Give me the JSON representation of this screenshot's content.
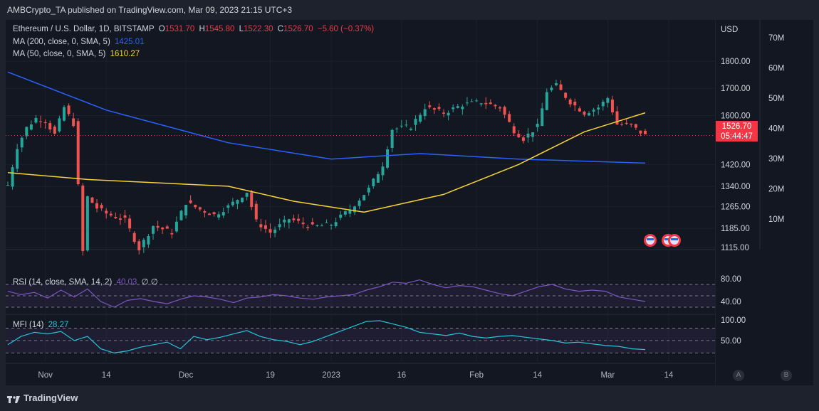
{
  "header": {
    "published": "AMBCrypto_TA published on TradingView.com, Mar 09, 2023 21:15 UTC+3"
  },
  "legend": {
    "symbol": "Ethereum / U.S. Dollar, 1D, BITSTAMP",
    "o_label": "O",
    "o_value": "1531.70",
    "h_label": "H",
    "h_value": "1545.80",
    "l_label": "L",
    "l_value": "1522.30",
    "c_label": "C",
    "c_value": "1526.70",
    "change": "−5.60 (−0.37%)",
    "ma200_label": "MA (200, close, 0, SMA, 5)",
    "ma200_value": "1425.01",
    "ma50_label": "MA (50, close, 0, SMA, 5)",
    "ma50_value": "1610.27",
    "rsi_label": "RSI (14, close, SMA, 14, 2)",
    "rsi_value": "40.03",
    "rsi_extra": "∅ ∅",
    "mfi_label": "MFI (14)",
    "mfi_value": "28.27"
  },
  "price_tag": {
    "price": "1526.70",
    "countdown": "05:44:47"
  },
  "axis": {
    "currency": "USD",
    "price_ticks": [
      "1800.00",
      "1700.00",
      "1600.00",
      "1420.00",
      "1340.00",
      "1265.00",
      "1185.00",
      "1115.00"
    ],
    "volume_ticks": [
      "70M",
      "60M",
      "50M",
      "40M",
      "30M",
      "20M",
      "10M"
    ],
    "rsi_ticks": [
      "80.00",
      "40.00"
    ],
    "mfi_ticks": [
      "100.00",
      "50.00"
    ],
    "time_ticks": [
      "Nov",
      "14",
      "Dec",
      "19",
      "2023",
      "16",
      "Feb",
      "14",
      "Mar",
      "14"
    ],
    "scale_buttons": [
      "A",
      "B"
    ]
  },
  "footer": {
    "brand": "TradingView"
  },
  "colors": {
    "up": "#26a69a",
    "down": "#ef5350",
    "ma200": "#2962ff",
    "ma50": "#f7d334",
    "rsi": "#7e57c2",
    "mfi": "#26c6da",
    "background": "#131722"
  },
  "chart_data": {
    "type": "candlestick",
    "title": "Ethereum / U.S. Dollar, 1D, BITSTAMP",
    "ylabel": "USD",
    "ylim": [
      1110,
      1850
    ],
    "x_range": [
      "2022-10-24",
      "2023-03-09"
    ],
    "ohlc_close_series": [
      {
        "date": "2022-10-24",
        "close": 1345
      },
      {
        "date": "2022-10-26",
        "close": 1485
      },
      {
        "date": "2022-10-28",
        "close": 1555
      },
      {
        "date": "2022-10-30",
        "close": 1590
      },
      {
        "date": "2022-11-01",
        "close": 1580
      },
      {
        "date": "2022-11-03",
        "close": 1530
      },
      {
        "date": "2022-11-05",
        "close": 1630
      },
      {
        "date": "2022-11-07",
        "close": 1570
      },
      {
        "date": "2022-11-08",
        "close": 1340
      },
      {
        "date": "2022-11-09",
        "close": 1100
      },
      {
        "date": "2022-11-10",
        "close": 1300
      },
      {
        "date": "2022-11-12",
        "close": 1260
      },
      {
        "date": "2022-11-14",
        "close": 1240
      },
      {
        "date": "2022-11-18",
        "close": 1215
      },
      {
        "date": "2022-11-21",
        "close": 1110
      },
      {
        "date": "2022-11-24",
        "close": 1195
      },
      {
        "date": "2022-11-28",
        "close": 1170
      },
      {
        "date": "2022-12-01",
        "close": 1280
      },
      {
        "date": "2022-12-04",
        "close": 1255
      },
      {
        "date": "2022-12-07",
        "close": 1235
      },
      {
        "date": "2022-12-10",
        "close": 1265
      },
      {
        "date": "2022-12-14",
        "close": 1320
      },
      {
        "date": "2022-12-16",
        "close": 1210
      },
      {
        "date": "2022-12-19",
        "close": 1170
      },
      {
        "date": "2022-12-23",
        "close": 1220
      },
      {
        "date": "2022-12-28",
        "close": 1190
      },
      {
        "date": "2023-01-01",
        "close": 1200
      },
      {
        "date": "2023-01-05",
        "close": 1255
      },
      {
        "date": "2023-01-09",
        "close": 1330
      },
      {
        "date": "2023-01-12",
        "close": 1420
      },
      {
        "date": "2023-01-14",
        "close": 1550
      },
      {
        "date": "2023-01-18",
        "close": 1560
      },
      {
        "date": "2023-01-21",
        "close": 1630
      },
      {
        "date": "2023-01-25",
        "close": 1610
      },
      {
        "date": "2023-01-29",
        "close": 1640
      },
      {
        "date": "2023-02-02",
        "close": 1650
      },
      {
        "date": "2023-02-06",
        "close": 1630
      },
      {
        "date": "2023-02-09",
        "close": 1545
      },
      {
        "date": "2023-02-11",
        "close": 1515
      },
      {
        "date": "2023-02-14",
        "close": 1560
      },
      {
        "date": "2023-02-16",
        "close": 1690
      },
      {
        "date": "2023-02-18",
        "close": 1710
      },
      {
        "date": "2023-02-21",
        "close": 1650
      },
      {
        "date": "2023-02-24",
        "close": 1610
      },
      {
        "date": "2023-02-27",
        "close": 1630
      },
      {
        "date": "2023-03-01",
        "close": 1665
      },
      {
        "date": "2023-03-03",
        "close": 1568
      },
      {
        "date": "2023-03-06",
        "close": 1562
      },
      {
        "date": "2023-03-09",
        "close": 1526.7
      }
    ],
    "ma200_series": [
      {
        "date": "2022-10-24",
        "value": 1760
      },
      {
        "date": "2022-11-14",
        "value": 1620
      },
      {
        "date": "2022-12-10",
        "value": 1500
      },
      {
        "date": "2023-01-01",
        "value": 1440
      },
      {
        "date": "2023-01-20",
        "value": 1460
      },
      {
        "date": "2023-02-10",
        "value": 1440
      },
      {
        "date": "2023-03-09",
        "value": 1425.01
      }
    ],
    "ma50_series": [
      {
        "date": "2022-10-24",
        "value": 1390
      },
      {
        "date": "2022-11-10",
        "value": 1365
      },
      {
        "date": "2022-12-10",
        "value": 1340
      },
      {
        "date": "2022-12-24",
        "value": 1285
      },
      {
        "date": "2023-01-08",
        "value": 1245
      },
      {
        "date": "2023-01-25",
        "value": 1310
      },
      {
        "date": "2023-02-10",
        "value": 1420
      },
      {
        "date": "2023-02-24",
        "value": 1540
      },
      {
        "date": "2023-03-09",
        "value": 1610.27
      }
    ],
    "rsi_series": [
      58,
      52,
      56,
      46,
      60,
      48,
      62,
      40,
      30,
      42,
      45,
      40,
      36,
      44,
      50,
      48,
      44,
      38,
      46,
      48,
      52,
      50,
      46,
      44,
      48,
      50,
      52,
      60,
      66,
      74,
      72,
      78,
      70,
      64,
      68,
      66,
      60,
      54,
      50,
      58,
      66,
      70,
      62,
      58,
      60,
      58,
      48,
      44,
      40.03
    ],
    "mfi_series": [
      40,
      60,
      70,
      66,
      72,
      50,
      60,
      30,
      20,
      25,
      34,
      40,
      46,
      30,
      60,
      52,
      58,
      66,
      74,
      60,
      52,
      48,
      40,
      48,
      60,
      72,
      84,
      96,
      98,
      90,
      82,
      70,
      66,
      62,
      68,
      60,
      56,
      60,
      62,
      58,
      54,
      50,
      44,
      46,
      42,
      38,
      36,
      30,
      28.27
    ]
  }
}
